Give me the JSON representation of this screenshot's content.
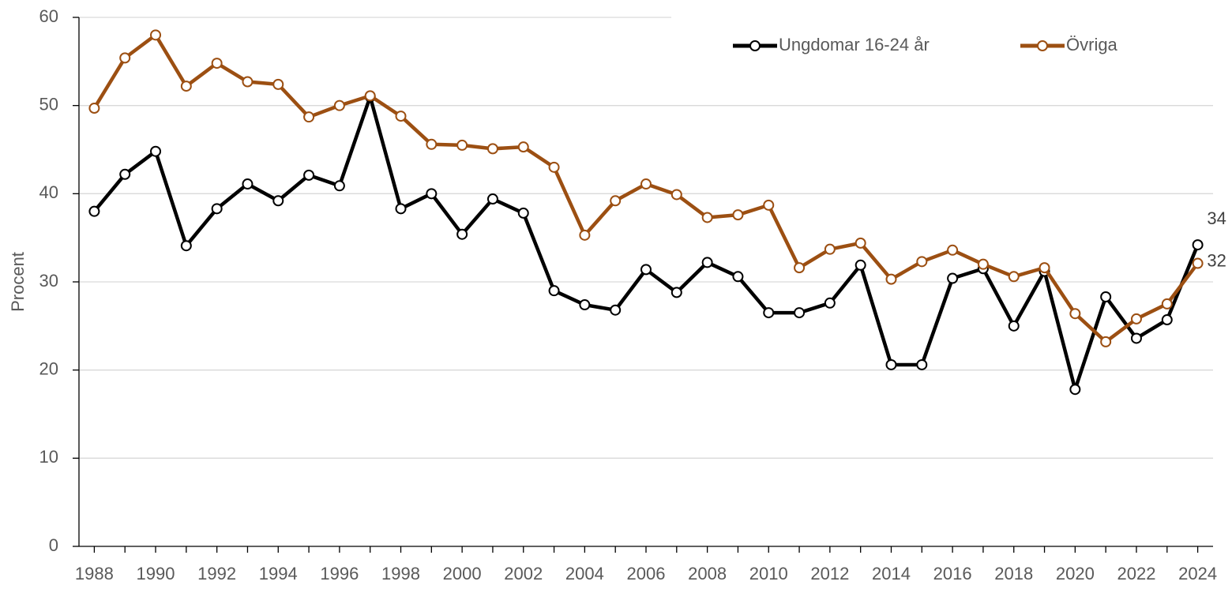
{
  "chart_data": {
    "type": "line",
    "y_label": "Procent",
    "x": [
      1988,
      1989,
      1990,
      1991,
      1992,
      1993,
      1994,
      1995,
      1996,
      1997,
      1998,
      1999,
      2000,
      2001,
      2002,
      2003,
      2004,
      2005,
      2006,
      2007,
      2008,
      2009,
      2010,
      2011,
      2012,
      2013,
      2014,
      2015,
      2016,
      2017,
      2018,
      2019,
      2020,
      2021,
      2022,
      2023,
      2024
    ],
    "series": [
      {
        "name": "Ungdomar 16-24 år",
        "color": "#000000",
        "values": [
          38,
          42.2,
          44.8,
          34.1,
          38.3,
          41.1,
          39.2,
          42.1,
          40.9,
          51,
          38.3,
          40,
          35.4,
          39.4,
          37.8,
          29,
          27.4,
          26.8,
          31.4,
          28.8,
          32.2,
          30.6,
          26.5,
          26.5,
          27.6,
          31.9,
          20.6,
          20.6,
          30.4,
          31.5,
          25,
          31.2,
          17.8,
          28.3,
          23.6,
          25.7,
          34.2
        ],
        "value_labels": [
          null,
          null,
          null,
          null,
          null,
          null,
          null,
          null,
          null,
          null,
          null,
          null,
          null,
          null,
          null,
          null,
          null,
          null,
          null,
          null,
          null,
          null,
          null,
          null,
          null,
          null,
          null,
          null,
          null,
          null,
          null,
          null,
          null,
          null,
          null,
          null,
          "34"
        ]
      },
      {
        "name": "Övriga",
        "color": "#9c4f12",
        "values": [
          49.7,
          55.4,
          58,
          52.2,
          54.8,
          52.7,
          52.4,
          48.7,
          50,
          51.1,
          48.8,
          45.6,
          45.5,
          45.1,
          45.3,
          43,
          35.3,
          39.2,
          41.1,
          39.9,
          37.3,
          37.6,
          38.7,
          31.6,
          33.7,
          34.4,
          30.3,
          32.3,
          33.6,
          32,
          30.6,
          31.6,
          26.4,
          23.2,
          25.8,
          27.5,
          32.1
        ],
        "value_labels": [
          null,
          null,
          null,
          null,
          null,
          null,
          null,
          null,
          null,
          null,
          null,
          null,
          null,
          null,
          null,
          null,
          null,
          null,
          null,
          null,
          null,
          null,
          null,
          null,
          null,
          null,
          null,
          null,
          null,
          null,
          null,
          null,
          null,
          null,
          null,
          null,
          "32"
        ]
      }
    ],
    "xlim": [
      1987.5,
      2024.5
    ],
    "xticks": [
      1988,
      1990,
      1992,
      1994,
      1996,
      1998,
      2000,
      2002,
      2004,
      2006,
      2008,
      2010,
      2012,
      2014,
      2016,
      2018,
      2020,
      2022,
      2024
    ],
    "ylim": [
      0,
      60
    ],
    "yticks": [
      0,
      10,
      20,
      30,
      40,
      50,
      60
    ],
    "grid": true,
    "legend": "top-right"
  }
}
